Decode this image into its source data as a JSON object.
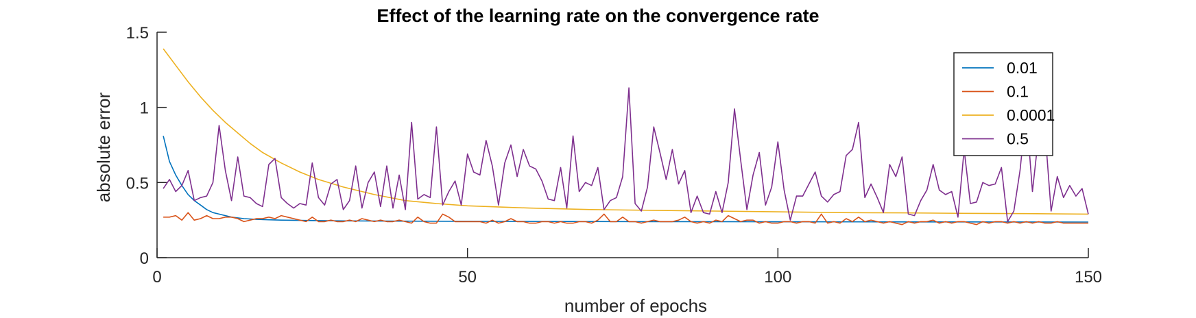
{
  "chart_data": {
    "type": "line",
    "title": "Effect of the learning rate on the convergence rate",
    "xlabel": "number of epochs",
    "ylabel": "absolute error",
    "xlim": [
      0,
      150
    ],
    "ylim": [
      0,
      1.5
    ],
    "xticks": [
      0,
      50,
      100,
      150
    ],
    "yticks": [
      0,
      0.5,
      1,
      1.5
    ],
    "xtick_labels": [
      "0",
      "50",
      "100",
      "150"
    ],
    "ytick_labels": [
      "0",
      "0.5",
      "1",
      "1.5"
    ],
    "grid": false,
    "legend_position": "top-right",
    "series": [
      {
        "name": "0.01",
        "color": "#0072BD",
        "x": [
          1,
          2,
          3,
          4,
          5,
          6,
          7,
          8,
          9,
          10,
          12,
          14,
          16,
          18,
          20,
          25,
          30,
          40,
          50,
          60,
          80,
          100,
          120,
          150
        ],
        "values": [
          0.81,
          0.64,
          0.55,
          0.48,
          0.42,
          0.38,
          0.35,
          0.32,
          0.3,
          0.29,
          0.27,
          0.26,
          0.255,
          0.252,
          0.25,
          0.247,
          0.245,
          0.243,
          0.242,
          0.241,
          0.24,
          0.239,
          0.238,
          0.237
        ]
      },
      {
        "name": "0.1",
        "color": "#D95319",
        "x": [
          1,
          2,
          3,
          4,
          5,
          6,
          7,
          8,
          9,
          10,
          11,
          12,
          13,
          14,
          15,
          16,
          17,
          18,
          19,
          20,
          21,
          22,
          23,
          24,
          25,
          26,
          27,
          28,
          29,
          30,
          31,
          32,
          33,
          34,
          35,
          36,
          37,
          38,
          39,
          40,
          41,
          42,
          43,
          44,
          45,
          46,
          47,
          48,
          49,
          50,
          51,
          52,
          53,
          54,
          55,
          56,
          57,
          58,
          59,
          60,
          61,
          62,
          63,
          64,
          65,
          66,
          67,
          68,
          69,
          70,
          71,
          72,
          73,
          74,
          75,
          76,
          77,
          78,
          79,
          80,
          81,
          82,
          83,
          84,
          85,
          86,
          87,
          88,
          89,
          90,
          91,
          92,
          93,
          94,
          95,
          96,
          97,
          98,
          99,
          100,
          101,
          102,
          103,
          104,
          105,
          106,
          107,
          108,
          109,
          110,
          111,
          112,
          113,
          114,
          115,
          116,
          117,
          118,
          119,
          120,
          121,
          122,
          123,
          124,
          125,
          126,
          127,
          128,
          129,
          130,
          131,
          132,
          133,
          134,
          135,
          136,
          137,
          138,
          139,
          140,
          141,
          142,
          143,
          144,
          145,
          146,
          147,
          148,
          149,
          150
        ],
        "values": [
          0.27,
          0.27,
          0.28,
          0.25,
          0.3,
          0.25,
          0.26,
          0.28,
          0.26,
          0.26,
          0.27,
          0.27,
          0.26,
          0.24,
          0.25,
          0.26,
          0.26,
          0.27,
          0.26,
          0.28,
          0.27,
          0.26,
          0.25,
          0.24,
          0.27,
          0.24,
          0.24,
          0.25,
          0.24,
          0.24,
          0.25,
          0.24,
          0.26,
          0.25,
          0.24,
          0.25,
          0.24,
          0.24,
          0.25,
          0.24,
          0.23,
          0.27,
          0.24,
          0.23,
          0.23,
          0.29,
          0.27,
          0.24,
          0.24,
          0.24,
          0.24,
          0.24,
          0.23,
          0.25,
          0.23,
          0.24,
          0.26,
          0.24,
          0.24,
          0.23,
          0.23,
          0.24,
          0.24,
          0.23,
          0.24,
          0.23,
          0.23,
          0.24,
          0.24,
          0.23,
          0.25,
          0.29,
          0.24,
          0.24,
          0.27,
          0.24,
          0.24,
          0.23,
          0.24,
          0.25,
          0.24,
          0.24,
          0.24,
          0.25,
          0.27,
          0.24,
          0.23,
          0.24,
          0.23,
          0.25,
          0.24,
          0.28,
          0.26,
          0.24,
          0.25,
          0.25,
          0.23,
          0.24,
          0.23,
          0.23,
          0.24,
          0.24,
          0.23,
          0.24,
          0.24,
          0.23,
          0.29,
          0.23,
          0.24,
          0.23,
          0.26,
          0.24,
          0.27,
          0.24,
          0.25,
          0.24,
          0.23,
          0.24,
          0.23,
          0.22,
          0.24,
          0.23,
          0.24,
          0.24,
          0.25,
          0.23,
          0.24,
          0.23,
          0.24,
          0.24,
          0.23,
          0.22,
          0.24,
          0.23,
          0.24,
          0.24,
          0.23,
          0.24,
          0.23,
          0.24,
          0.23,
          0.24,
          0.23,
          0.23,
          0.24,
          0.23,
          0.23,
          0.23,
          0.23,
          0.23
        ]
      },
      {
        "name": "0.0001",
        "color": "#EDB120",
        "x": [
          1,
          3,
          5,
          7,
          9,
          11,
          13,
          15,
          17,
          20,
          23,
          26,
          30,
          35,
          40,
          45,
          50,
          60,
          70,
          80,
          90,
          100,
          110,
          120,
          130,
          140,
          150
        ],
        "values": [
          1.39,
          1.28,
          1.17,
          1.07,
          0.98,
          0.9,
          0.83,
          0.76,
          0.7,
          0.63,
          0.57,
          0.52,
          0.47,
          0.42,
          0.38,
          0.36,
          0.345,
          0.33,
          0.32,
          0.315,
          0.31,
          0.305,
          0.3,
          0.298,
          0.295,
          0.293,
          0.29
        ]
      },
      {
        "name": "0.5",
        "color": "#7E2F8E",
        "x": [
          1,
          2,
          3,
          4,
          5,
          6,
          7,
          8,
          9,
          10,
          11,
          12,
          13,
          14,
          15,
          16,
          17,
          18,
          19,
          20,
          21,
          22,
          23,
          24,
          25,
          26,
          27,
          28,
          29,
          30,
          31,
          32,
          33,
          34,
          35,
          36,
          37,
          38,
          39,
          40,
          41,
          42,
          43,
          44,
          45,
          46,
          47,
          48,
          49,
          50,
          51,
          52,
          53,
          54,
          55,
          56,
          57,
          58,
          59,
          60,
          61,
          62,
          63,
          64,
          65,
          66,
          67,
          68,
          69,
          70,
          71,
          72,
          73,
          74,
          75,
          76,
          77,
          78,
          79,
          80,
          81,
          82,
          83,
          84,
          85,
          86,
          87,
          88,
          89,
          90,
          91,
          92,
          93,
          94,
          95,
          96,
          97,
          98,
          99,
          100,
          101,
          102,
          103,
          104,
          105,
          106,
          107,
          108,
          109,
          110,
          111,
          112,
          113,
          114,
          115,
          116,
          117,
          118,
          119,
          120,
          121,
          122,
          123,
          124,
          125,
          126,
          127,
          128,
          129,
          130,
          131,
          132,
          133,
          134,
          135,
          136,
          137,
          138,
          139,
          140,
          141,
          142,
          143,
          144,
          145,
          146,
          147,
          148,
          149,
          150
        ],
        "values": [
          0.46,
          0.52,
          0.44,
          0.48,
          0.58,
          0.38,
          0.4,
          0.41,
          0.5,
          0.88,
          0.58,
          0.38,
          0.67,
          0.41,
          0.4,
          0.36,
          0.34,
          0.62,
          0.66,
          0.4,
          0.36,
          0.33,
          0.36,
          0.35,
          0.63,
          0.4,
          0.35,
          0.49,
          0.52,
          0.32,
          0.38,
          0.61,
          0.33,
          0.5,
          0.57,
          0.34,
          0.61,
          0.33,
          0.55,
          0.32,
          0.9,
          0.39,
          0.42,
          0.4,
          0.87,
          0.35,
          0.44,
          0.51,
          0.35,
          0.69,
          0.57,
          0.55,
          0.78,
          0.61,
          0.35,
          0.63,
          0.75,
          0.54,
          0.72,
          0.61,
          0.59,
          0.51,
          0.39,
          0.38,
          0.6,
          0.33,
          0.81,
          0.44,
          0.5,
          0.48,
          0.6,
          0.32,
          0.38,
          0.4,
          0.54,
          1.13,
          0.36,
          0.31,
          0.47,
          0.87,
          0.7,
          0.52,
          0.72,
          0.49,
          0.58,
          0.3,
          0.41,
          0.3,
          0.29,
          0.44,
          0.3,
          0.5,
          0.99,
          0.65,
          0.32,
          0.55,
          0.7,
          0.35,
          0.47,
          0.77,
          0.45,
          0.25,
          0.41,
          0.41,
          0.49,
          0.57,
          0.41,
          0.37,
          0.42,
          0.44,
          0.68,
          0.72,
          0.9,
          0.4,
          0.49,
          0.4,
          0.3,
          0.62,
          0.54,
          0.67,
          0.29,
          0.28,
          0.38,
          0.45,
          0.62,
          0.45,
          0.42,
          0.44,
          0.27,
          0.72,
          0.36,
          0.37,
          0.5,
          0.48,
          0.49,
          0.6,
          0.24,
          0.31,
          0.58,
          0.98,
          0.44,
          0.82,
          0.86,
          0.31,
          0.54,
          0.4,
          0.48,
          0.41,
          0.46,
          0.29
        ]
      }
    ]
  }
}
